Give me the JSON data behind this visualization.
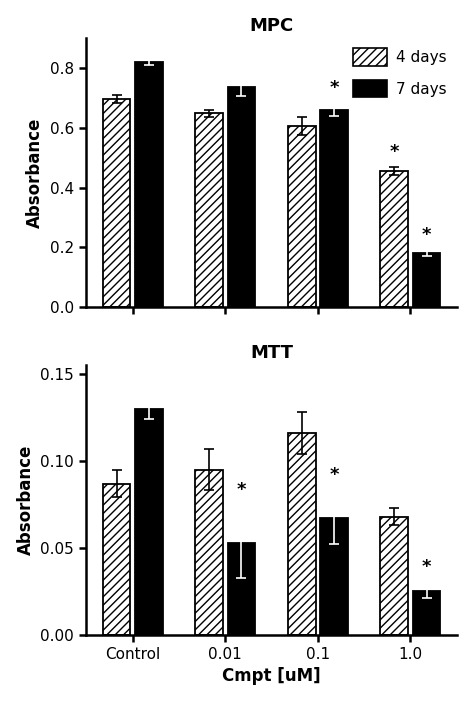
{
  "mpc_4days": [
    0.695,
    0.648,
    0.605,
    0.455
  ],
  "mpc_7days": [
    0.82,
    0.735,
    0.66,
    0.18
  ],
  "mpc_4days_err": [
    0.012,
    0.012,
    0.03,
    0.012
  ],
  "mpc_7days_err": [
    0.012,
    0.03,
    0.02,
    0.01
  ],
  "mtt_4days": [
    0.087,
    0.095,
    0.116,
    0.068
  ],
  "mtt_7days": [
    0.13,
    0.053,
    0.067,
    0.025
  ],
  "mtt_4days_err": [
    0.008,
    0.012,
    0.012,
    0.005
  ],
  "mtt_7days_err": [
    0.006,
    0.02,
    0.015,
    0.004
  ],
  "categories": [
    "Control",
    "0.01",
    "0.1",
    "1.0"
  ],
  "mpc_title": "MPC",
  "mtt_title": "MTT",
  "xlabel": "Cmpt [uM]",
  "ylabel": "Absorbance",
  "mpc_ylim": [
    0,
    0.9
  ],
  "mtt_ylim": [
    0,
    0.155
  ],
  "mpc_yticks": [
    0.0,
    0.2,
    0.4,
    0.6,
    0.8
  ],
  "mtt_yticks": [
    0.0,
    0.05,
    0.1,
    0.15
  ],
  "legend_labels": [
    "4 days",
    "7 days"
  ],
  "bar_color_4days": "#ffffff",
  "bar_color_7days": "#000000",
  "hatch_color": "#000000",
  "mpc_star_4days": [
    false,
    false,
    false,
    true
  ],
  "mpc_star_7days": [
    false,
    false,
    true,
    true
  ],
  "mtt_star_4days": [
    false,
    false,
    false,
    false
  ],
  "mtt_star_7days": [
    false,
    true,
    true,
    true
  ],
  "background_color": "#ffffff"
}
